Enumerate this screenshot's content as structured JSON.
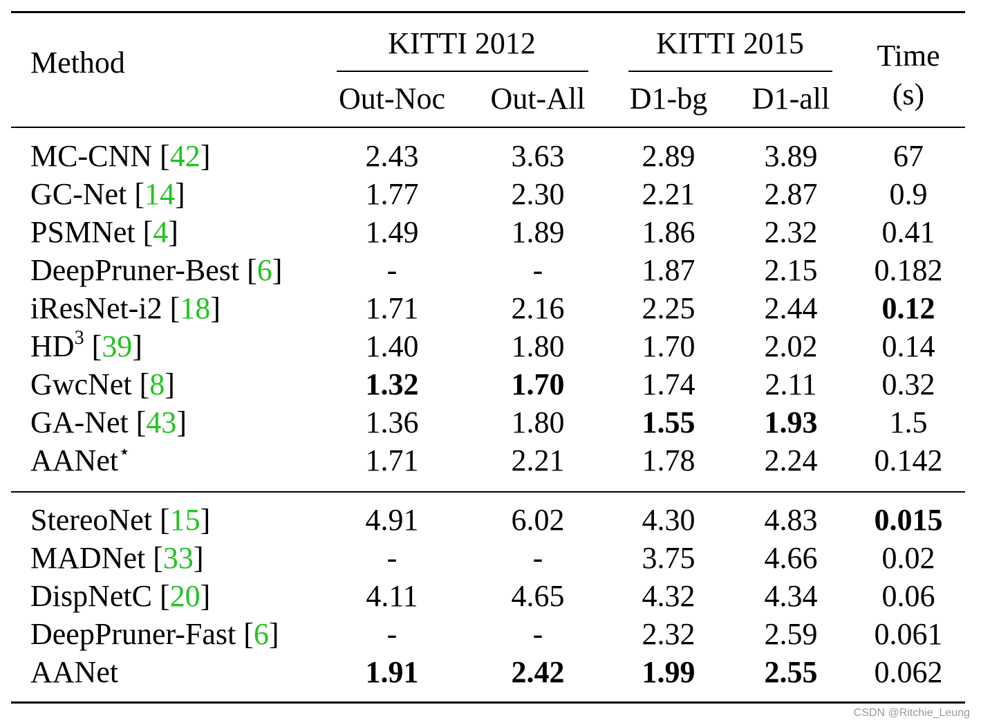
{
  "header": {
    "method": "Method",
    "group1": "KITTI 2012",
    "group2": "KITTI 2015",
    "time_line1": "Time",
    "time_line2": "(s)",
    "sub": [
      "Out-Noc",
      "Out-All",
      "D1-bg",
      "D1-all"
    ]
  },
  "groups": [
    {
      "rows": [
        {
          "name": "MC-CNN",
          "ref": "42",
          "values": [
            "2.43",
            "3.63",
            "2.89",
            "3.89",
            "67"
          ],
          "bold": []
        },
        {
          "name": "GC-Net",
          "ref": "14",
          "values": [
            "1.77",
            "2.30",
            "2.21",
            "2.87",
            "0.9"
          ],
          "bold": []
        },
        {
          "name": "PSMNet",
          "ref": "4",
          "values": [
            "1.49",
            "1.89",
            "1.86",
            "2.32",
            "0.41"
          ],
          "bold": []
        },
        {
          "name": "DeepPruner-Best",
          "ref": "6",
          "values": [
            "-",
            "-",
            "1.87",
            "2.15",
            "0.182"
          ],
          "bold": []
        },
        {
          "name": "iResNet-i2",
          "ref": "18",
          "values": [
            "1.71",
            "2.16",
            "2.25",
            "2.44",
            "0.12"
          ],
          "bold": [
            4
          ]
        },
        {
          "name": "HD",
          "sup": "3",
          "ref": "39",
          "values": [
            "1.40",
            "1.80",
            "1.70",
            "2.02",
            "0.14"
          ],
          "bold": []
        },
        {
          "name": "GwcNet",
          "ref": "8",
          "values": [
            "1.32",
            "1.70",
            "1.74",
            "2.11",
            "0.32"
          ],
          "bold": [
            0,
            1
          ]
        },
        {
          "name": "GA-Net",
          "ref": "43",
          "values": [
            "1.36",
            "1.80",
            "1.55",
            "1.93",
            "1.5"
          ],
          "bold": [
            2,
            3
          ]
        },
        {
          "name": "AANet",
          "sup": "⋆",
          "values": [
            "1.71",
            "2.21",
            "1.78",
            "2.24",
            "0.142"
          ],
          "bold": []
        }
      ]
    },
    {
      "rows": [
        {
          "name": "StereoNet",
          "ref": "15",
          "values": [
            "4.91",
            "6.02",
            "4.30",
            "4.83",
            "0.015"
          ],
          "bold": [
            4
          ]
        },
        {
          "name": "MADNet",
          "ref": "33",
          "values": [
            "-",
            "-",
            "3.75",
            "4.66",
            "0.02"
          ],
          "bold": []
        },
        {
          "name": "DispNetC",
          "ref": "20",
          "values": [
            "4.11",
            "4.65",
            "4.32",
            "4.34",
            "0.06"
          ],
          "bold": []
        },
        {
          "name": "DeepPruner-Fast",
          "ref": "6",
          "values": [
            "-",
            "-",
            "2.32",
            "2.59",
            "0.061"
          ],
          "bold": []
        },
        {
          "name": "AANet",
          "values": [
            "1.91",
            "2.42",
            "1.99",
            "2.55",
            "0.062"
          ],
          "bold": [
            0,
            1,
            2,
            3
          ]
        }
      ]
    }
  ],
  "watermark": "CSDN @Ritchie_Leung"
}
